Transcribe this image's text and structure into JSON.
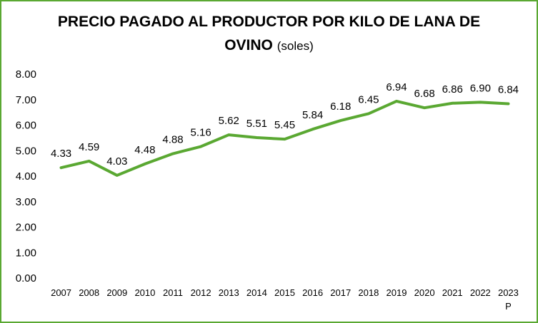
{
  "chart_data": {
    "type": "line",
    "title": "PRECIO PAGADO AL PRODUCTOR POR KILO DE LANA DE",
    "title_line2": "OVINO",
    "title_unit": "(soles)",
    "categories": [
      "2007",
      "2008",
      "2009",
      "2010",
      "2011",
      "2012",
      "2013",
      "2014",
      "2015",
      "2016",
      "2017",
      "2018",
      "2019",
      "2020",
      "2021",
      "2022",
      "2023"
    ],
    "category_notes": {
      "2023": "P"
    },
    "series": [
      {
        "values": [
          4.33,
          4.59,
          4.03,
          4.48,
          4.88,
          5.16,
          5.62,
          5.51,
          5.45,
          5.84,
          6.18,
          6.45,
          6.94,
          6.68,
          6.86,
          6.9,
          6.84
        ],
        "labels": [
          "4.33",
          "4.59",
          "4.03",
          "4.48",
          "4.88",
          "5.16",
          "5.62",
          "5.51",
          "5.45",
          "5.84",
          "6.18",
          "6.45",
          "6.94",
          "6.68",
          "6.86",
          "6.90",
          "6.84"
        ]
      }
    ],
    "ylim": [
      0,
      8
    ],
    "yticks": [
      "0.00",
      "1.00",
      "2.00",
      "3.00",
      "4.00",
      "5.00",
      "6.00",
      "7.00",
      "8.00"
    ],
    "grid": false,
    "legend": "none",
    "line_color": "#5aa832",
    "border_color": "#5aa832"
  }
}
